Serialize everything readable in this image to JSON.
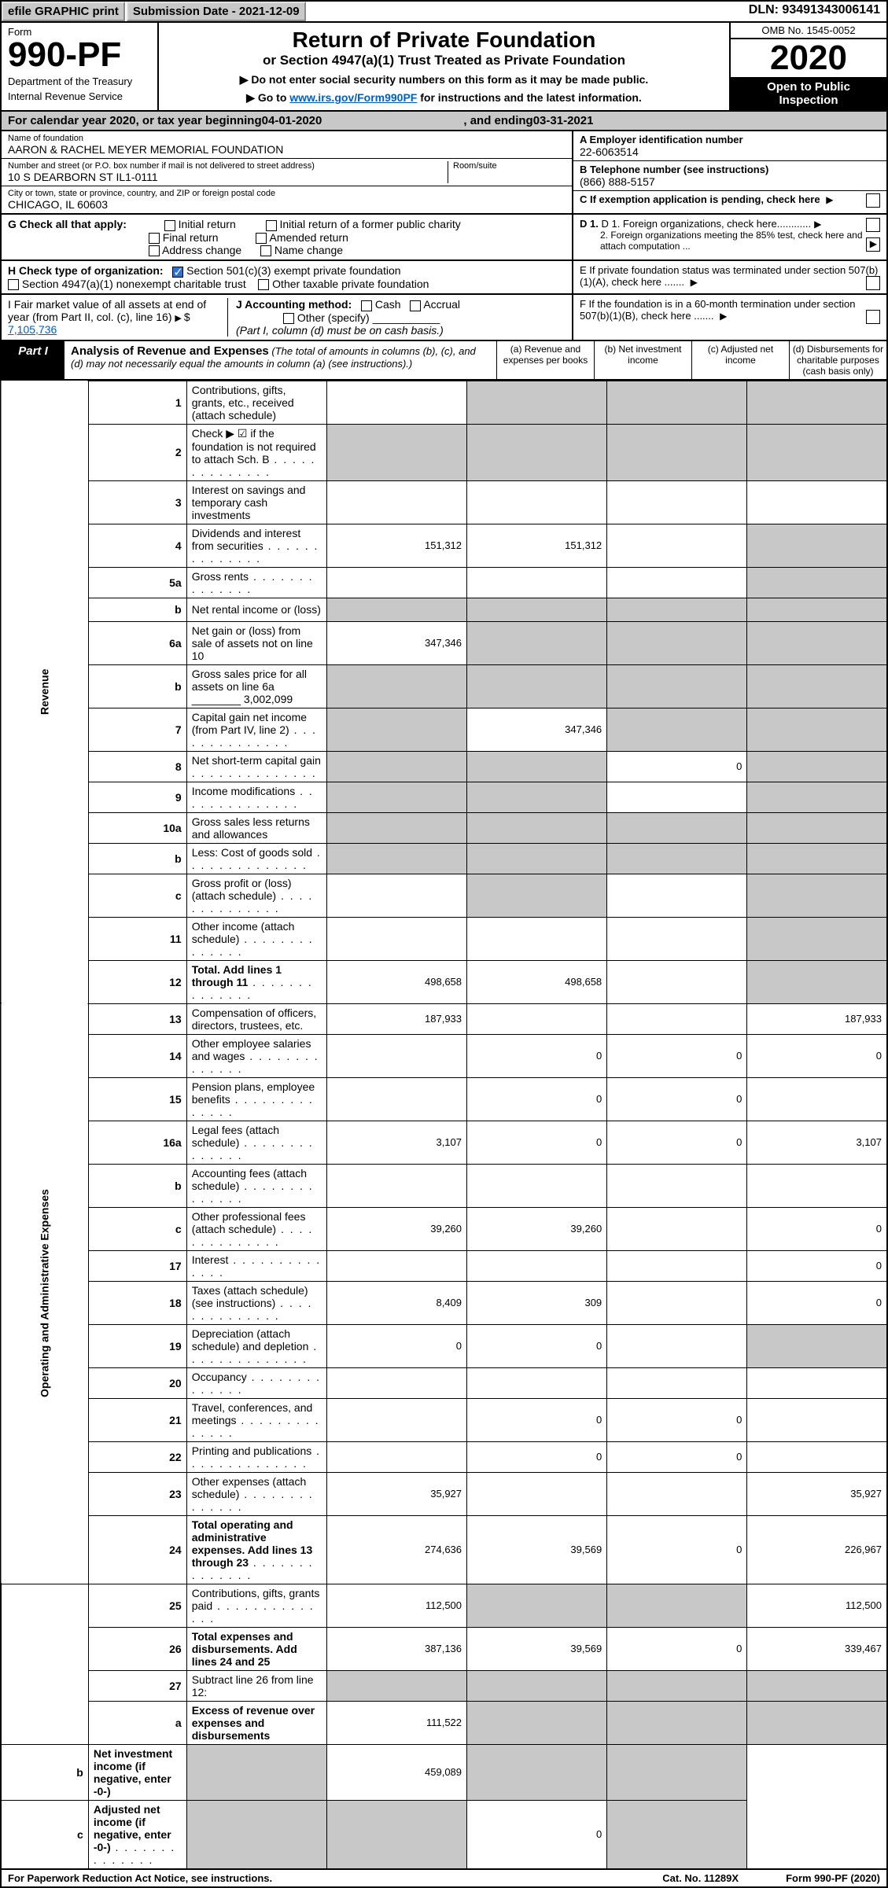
{
  "topbar": {
    "efile": "efile GRAPHIC print",
    "subdate_lbl": "Submission Date - ",
    "subdate": "2021-12-09",
    "dln_lbl": "DLN: ",
    "dln": "93491343006141"
  },
  "header": {
    "form": "Form",
    "num": "990-PF",
    "dept1": "Department of the Treasury",
    "dept2": "Internal Revenue Service",
    "title": "Return of Private Foundation",
    "sub": "or Section 4947(a)(1) Trust Treated as Private Foundation",
    "instr1": "▶ Do not enter social security numbers on this form as it may be made public.",
    "instr2": "▶ Go to ",
    "instr2_link": "www.irs.gov/Form990PF",
    "instr2_tail": " for instructions and the latest information.",
    "omb": "OMB No. 1545-0052",
    "year": "2020",
    "open1": "Open to Public",
    "open2": "Inspection"
  },
  "cal": {
    "a": "For calendar year 2020, or tax year beginning ",
    "b": "04-01-2020",
    "c": ", and ending ",
    "d": "03-31-2021"
  },
  "info": {
    "name_lbl": "Name of foundation",
    "name": "AARON & RACHEL MEYER MEMORIAL FOUNDATION",
    "addr_lbl": "Number and street (or P.O. box number if mail is not delivered to street address)",
    "room_lbl": "Room/suite",
    "addr": "10 S DEARBORN ST IL1-0111",
    "city_lbl": "City or town, state or province, country, and ZIP or foreign postal code",
    "city": "CHICAGO, IL  60603",
    "a_lbl": "A Employer identification number",
    "a": "22-6063514",
    "b_lbl": "B Telephone number (see instructions)",
    "b": "(866) 888-5157",
    "c_lbl": "C If exemption application is pending, check here",
    "d1": "D 1. Foreign organizations, check here............",
    "d2": "2. Foreign organizations meeting the 85% test, check here and attach computation ...",
    "e": "E  If private foundation status was terminated under section 507(b)(1)(A), check here .......",
    "f": "F  If the foundation is in a 60-month termination under section 507(b)(1)(B), check here .......",
    "g_lbl": "G Check all that apply:",
    "g_opts": [
      "Initial return",
      "Final return",
      "Address change",
      "Initial return of a former public charity",
      "Amended return",
      "Name change"
    ],
    "h_lbl": "H Check type of organization:",
    "h1": "Section 501(c)(3) exempt private foundation",
    "h2": "Section 4947(a)(1) nonexempt charitable trust",
    "h3": "Other taxable private foundation",
    "i_lbl": "I Fair market value of all assets at end of year (from Part II, col. (c), line 16)",
    "i_val": "7,105,736",
    "j_lbl": "J Accounting method:",
    "j_opts": [
      "Cash",
      "Accrual"
    ],
    "j_other": "Other (specify)",
    "j_note": "(Part I, column (d) must be on cash basis.)"
  },
  "part1": {
    "tab": "Part I",
    "title": "Analysis of Revenue and Expenses",
    "title_note": "(The total of amounts in columns (b), (c), and (d) may not necessarily equal the amounts in column (a) (see instructions).)",
    "cols": {
      "a": "(a) Revenue and expenses per books",
      "b": "(b) Net investment income",
      "c": "(c) Adjusted net income",
      "d": "(d) Disbursements for charitable purposes (cash basis only)"
    }
  },
  "sections": {
    "rev": "Revenue",
    "exp": "Operating and Administrative Expenses"
  },
  "rows": [
    {
      "n": "1",
      "d": "Contributions, gifts, grants, etc., received (attach schedule)",
      "a": "",
      "shade": [
        "b",
        "c",
        "d"
      ]
    },
    {
      "n": "2",
      "d": "Check ▶ ☑ if the foundation is not required to attach Sch. B",
      "dots": true,
      "mergeA": true,
      "shade": [
        "a",
        "b",
        "c",
        "d"
      ]
    },
    {
      "n": "3",
      "d": "Interest on savings and temporary cash investments"
    },
    {
      "n": "4",
      "d": "Dividends and interest from securities",
      "dots": true,
      "a": "151,312",
      "b": "151,312",
      "shade": [
        "d"
      ]
    },
    {
      "n": "5a",
      "d": "Gross rents",
      "dots": true,
      "shade": [
        "d"
      ]
    },
    {
      "n": "b",
      "d": "Net rental income or (loss)",
      "inset": true,
      "shade": [
        "a",
        "b",
        "c",
        "d"
      ]
    },
    {
      "n": "6a",
      "d": "Net gain or (loss) from sale of assets not on line 10",
      "a": "347,346",
      "shade": [
        "b",
        "c",
        "d"
      ]
    },
    {
      "n": "b",
      "d": "Gross sales price for all assets on line 6a ________ 3,002,099",
      "inset": true,
      "shade": [
        "a",
        "b",
        "c",
        "d"
      ]
    },
    {
      "n": "7",
      "d": "Capital gain net income (from Part IV, line 2)",
      "dots": true,
      "b": "347,346",
      "shade": [
        "a",
        "c",
        "d"
      ]
    },
    {
      "n": "8",
      "d": "Net short-term capital gain",
      "dots": true,
      "c": "0",
      "shade": [
        "a",
        "b",
        "d"
      ]
    },
    {
      "n": "9",
      "d": "Income modifications",
      "dots": true,
      "shade": [
        "a",
        "b",
        "d"
      ]
    },
    {
      "n": "10a",
      "d": "Gross sales less returns and allowances",
      "inset": true,
      "shade": [
        "a",
        "b",
        "c",
        "d"
      ]
    },
    {
      "n": "b",
      "d": "Less: Cost of goods sold",
      "dots": true,
      "inset": true,
      "shade": [
        "a",
        "b",
        "c",
        "d"
      ]
    },
    {
      "n": "c",
      "d": "Gross profit or (loss) (attach schedule)",
      "dots": true,
      "shade": [
        "b",
        "d"
      ]
    },
    {
      "n": "11",
      "d": "Other income (attach schedule)",
      "dots": true,
      "shade": [
        "d"
      ]
    },
    {
      "n": "12",
      "d": "Total. Add lines 1 through 11",
      "bold": true,
      "dots": true,
      "a": "498,658",
      "b": "498,658",
      "shade": [
        "d"
      ]
    },
    {
      "n": "13",
      "d": "Compensation of officers, directors, trustees, etc.",
      "a": "187,933",
      "d2": "187,933",
      "sec": "exp"
    },
    {
      "n": "14",
      "d": "Other employee salaries and wages",
      "dots": true,
      "b": "0",
      "c": "0",
      "d2": "0"
    },
    {
      "n": "15",
      "d": "Pension plans, employee benefits",
      "dots": true,
      "b": "0",
      "c": "0"
    },
    {
      "n": "16a",
      "d": "Legal fees (attach schedule)",
      "dots": true,
      "a": "3,107",
      "b": "0",
      "c": "0",
      "d2": "3,107"
    },
    {
      "n": "b",
      "d": "Accounting fees (attach schedule)",
      "dots": true
    },
    {
      "n": "c",
      "d": "Other professional fees (attach schedule)",
      "dots": true,
      "a": "39,260",
      "b": "39,260",
      "d2": "0"
    },
    {
      "n": "17",
      "d": "Interest",
      "dots": true,
      "d2": "0"
    },
    {
      "n": "18",
      "d": "Taxes (attach schedule) (see instructions)",
      "dots": true,
      "a": "8,409",
      "b": "309",
      "d2": "0"
    },
    {
      "n": "19",
      "d": "Depreciation (attach schedule) and depletion",
      "dots": true,
      "a": "0",
      "b": "0",
      "shade": [
        "d"
      ]
    },
    {
      "n": "20",
      "d": "Occupancy",
      "dots": true
    },
    {
      "n": "21",
      "d": "Travel, conferences, and meetings",
      "dots": true,
      "b": "0",
      "c": "0"
    },
    {
      "n": "22",
      "d": "Printing and publications",
      "dots": true,
      "b": "0",
      "c": "0"
    },
    {
      "n": "23",
      "d": "Other expenses (attach schedule)",
      "dots": true,
      "a": "35,927",
      "d2": "35,927"
    },
    {
      "n": "24",
      "d": "Total operating and administrative expenses. Add lines 13 through 23",
      "bold": true,
      "dots": true,
      "a": "274,636",
      "b": "39,569",
      "c": "0",
      "d2": "226,967"
    },
    {
      "n": "25",
      "d": "Contributions, gifts, grants paid",
      "dots": true,
      "a": "112,500",
      "shade": [
        "b",
        "c"
      ],
      "d2": "112,500"
    },
    {
      "n": "26",
      "d": "Total expenses and disbursements. Add lines 24 and 25",
      "bold": true,
      "a": "387,136",
      "b": "39,569",
      "c": "0",
      "d2": "339,467"
    },
    {
      "n": "27",
      "d": "Subtract line 26 from line 12:",
      "shade": [
        "a",
        "b",
        "c",
        "d"
      ],
      "sec": "end"
    },
    {
      "n": "a",
      "d": "Excess of revenue over expenses and disbursements",
      "bold": true,
      "a": "111,522",
      "shade": [
        "b",
        "c",
        "d"
      ]
    },
    {
      "n": "b",
      "d": "Net investment income (if negative, enter -0-)",
      "bold": true,
      "b": "459,089",
      "shade": [
        "a",
        "c",
        "d"
      ]
    },
    {
      "n": "c",
      "d": "Adjusted net income (if negative, enter -0-)",
      "bold": true,
      "dots": true,
      "c": "0",
      "shade": [
        "a",
        "b",
        "d"
      ]
    }
  ],
  "footer": {
    "a": "For Paperwork Reduction Act Notice, see instructions.",
    "b": "Cat. No. 11289X",
    "c": "Form 990-PF (2020)"
  }
}
